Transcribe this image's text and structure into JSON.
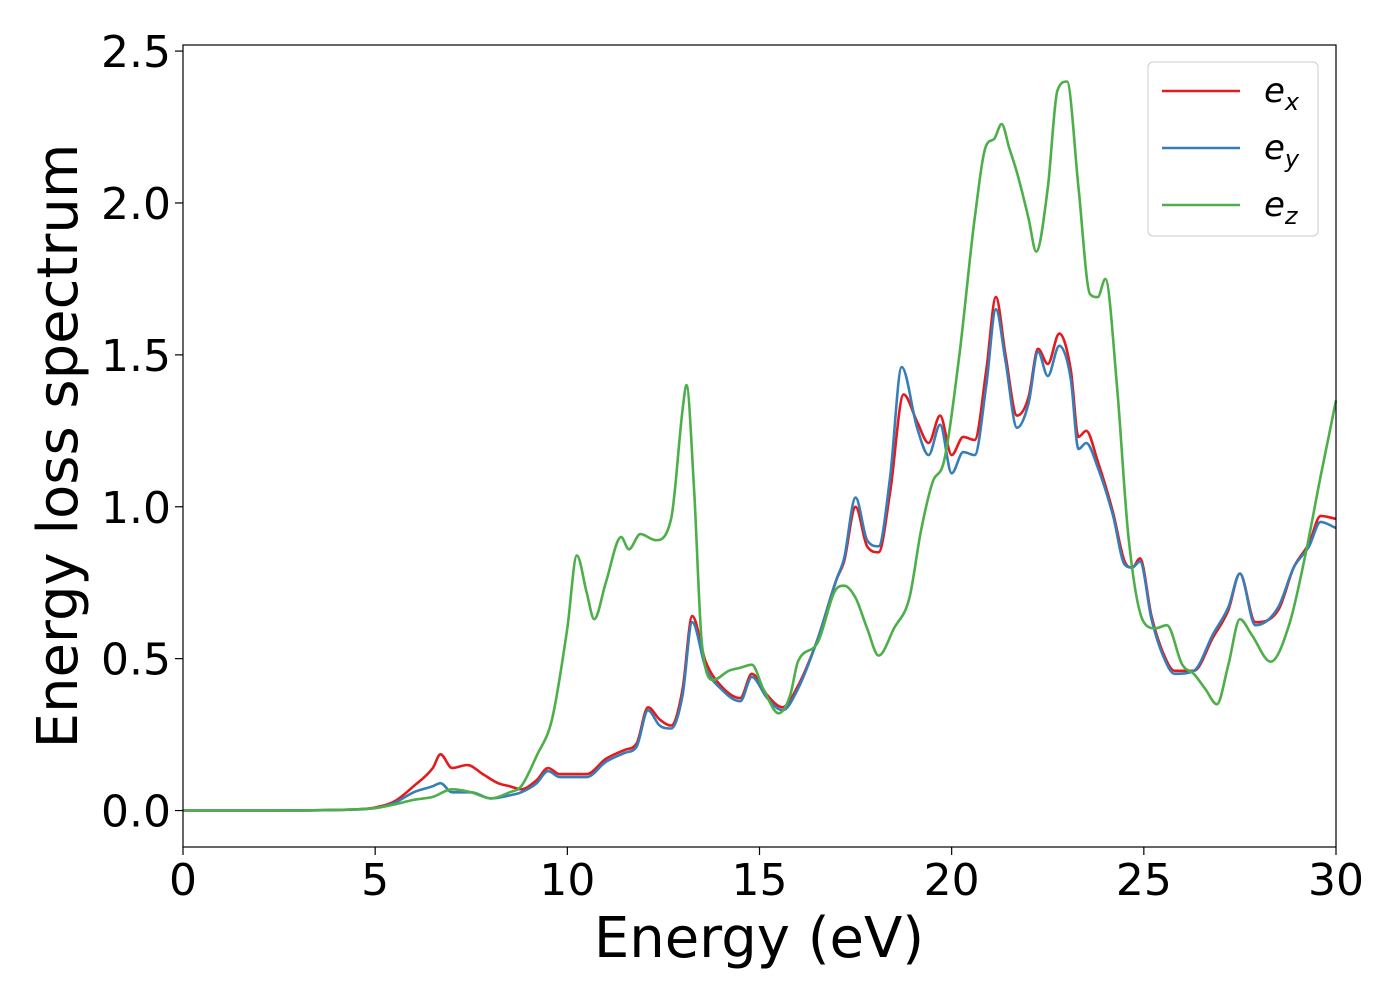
{
  "chart_data": {
    "type": "line",
    "title": "",
    "xlabel": "Energy (eV)",
    "ylabel": "Energy loss spectrum",
    "xlim": [
      0,
      30
    ],
    "ylim": [
      -0.12,
      2.52
    ],
    "xticks": [
      0,
      5,
      10,
      15,
      20,
      25,
      30
    ],
    "xtick_labels": [
      "0",
      "5",
      "10",
      "15",
      "20",
      "25",
      "30"
    ],
    "yticks": [
      0.0,
      0.5,
      1.0,
      1.5,
      2.0,
      2.5
    ],
    "ytick_labels": [
      "0.0",
      "0.5",
      "1.0",
      "1.5",
      "2.0",
      "2.5"
    ],
    "grid": false,
    "legend_position": "top-right",
    "series": [
      {
        "name": "e_x",
        "label_base": "e",
        "label_sub": "x",
        "color": "#e41a1c",
        "points": [
          [
            0,
            0
          ],
          [
            2,
            0
          ],
          [
            4,
            0.002
          ],
          [
            5,
            0.01
          ],
          [
            5.5,
            0.03
          ],
          [
            6,
            0.08
          ],
          [
            6.5,
            0.14
          ],
          [
            6.7,
            0.185
          ],
          [
            7,
            0.14
          ],
          [
            7.4,
            0.15
          ],
          [
            7.8,
            0.12
          ],
          [
            8.2,
            0.09
          ],
          [
            8.5,
            0.08
          ],
          [
            8.8,
            0.07
          ],
          [
            9.2,
            0.1
          ],
          [
            9.5,
            0.14
          ],
          [
            9.8,
            0.12
          ],
          [
            10.5,
            0.12
          ],
          [
            11,
            0.17
          ],
          [
            11.5,
            0.2
          ],
          [
            11.8,
            0.22
          ],
          [
            12.1,
            0.34
          ],
          [
            12.4,
            0.3
          ],
          [
            12.7,
            0.28
          ],
          [
            13,
            0.4
          ],
          [
            13.25,
            0.64
          ],
          [
            13.6,
            0.49
          ],
          [
            14,
            0.41
          ],
          [
            14.5,
            0.37
          ],
          [
            14.8,
            0.45
          ],
          [
            15.2,
            0.38
          ],
          [
            15.6,
            0.34
          ],
          [
            16,
            0.41
          ],
          [
            16.5,
            0.56
          ],
          [
            17,
            0.76
          ],
          [
            17.2,
            0.82
          ],
          [
            17.5,
            1.0
          ],
          [
            17.8,
            0.87
          ],
          [
            18.1,
            0.85
          ],
          [
            18.4,
            1.05
          ],
          [
            18.75,
            1.37
          ],
          [
            19.1,
            1.28
          ],
          [
            19.4,
            1.21
          ],
          [
            19.7,
            1.3
          ],
          [
            20,
            1.17
          ],
          [
            20.3,
            1.23
          ],
          [
            20.6,
            1.22
          ],
          [
            20.9,
            1.45
          ],
          [
            21.15,
            1.69
          ],
          [
            21.4,
            1.5
          ],
          [
            21.7,
            1.3
          ],
          [
            22,
            1.36
          ],
          [
            22.25,
            1.52
          ],
          [
            22.5,
            1.47
          ],
          [
            22.8,
            1.57
          ],
          [
            23.1,
            1.45
          ],
          [
            23.3,
            1.23
          ],
          [
            23.5,
            1.25
          ],
          [
            23.8,
            1.15
          ],
          [
            24.2,
            0.98
          ],
          [
            24.5,
            0.82
          ],
          [
            24.7,
            0.8
          ],
          [
            24.9,
            0.83
          ],
          [
            25.2,
            0.64
          ],
          [
            25.5,
            0.52
          ],
          [
            25.8,
            0.46
          ],
          [
            26.3,
            0.46
          ],
          [
            26.8,
            0.57
          ],
          [
            27.2,
            0.66
          ],
          [
            27.5,
            0.78
          ],
          [
            27.9,
            0.62
          ],
          [
            28.5,
            0.66
          ],
          [
            28.9,
            0.8
          ],
          [
            29.3,
            0.88
          ],
          [
            29.6,
            0.97
          ],
          [
            30,
            0.96
          ]
        ]
      },
      {
        "name": "e_y",
        "label_base": "e",
        "label_sub": "y",
        "color": "#377eb8",
        "points": [
          [
            0,
            0
          ],
          [
            2,
            0
          ],
          [
            4,
            0.002
          ],
          [
            5,
            0.008
          ],
          [
            5.5,
            0.025
          ],
          [
            6,
            0.06
          ],
          [
            6.5,
            0.08
          ],
          [
            6.7,
            0.09
          ],
          [
            7,
            0.06
          ],
          [
            7.5,
            0.06
          ],
          [
            8,
            0.04
          ],
          [
            8.5,
            0.05
          ],
          [
            8.8,
            0.06
          ],
          [
            9.2,
            0.09
          ],
          [
            9.5,
            0.13
          ],
          [
            9.8,
            0.11
          ],
          [
            10.5,
            0.11
          ],
          [
            11,
            0.16
          ],
          [
            11.5,
            0.19
          ],
          [
            11.8,
            0.21
          ],
          [
            12.1,
            0.33
          ],
          [
            12.4,
            0.28
          ],
          [
            12.7,
            0.27
          ],
          [
            13,
            0.38
          ],
          [
            13.25,
            0.62
          ],
          [
            13.6,
            0.47
          ],
          [
            14,
            0.4
          ],
          [
            14.5,
            0.36
          ],
          [
            14.8,
            0.44
          ],
          [
            15.2,
            0.37
          ],
          [
            15.6,
            0.33
          ],
          [
            16,
            0.4
          ],
          [
            16.5,
            0.56
          ],
          [
            17,
            0.76
          ],
          [
            17.2,
            0.83
          ],
          [
            17.5,
            1.03
          ],
          [
            17.8,
            0.89
          ],
          [
            18.1,
            0.87
          ],
          [
            18.4,
            1.1
          ],
          [
            18.7,
            1.46
          ],
          [
            19.1,
            1.26
          ],
          [
            19.4,
            1.17
          ],
          [
            19.7,
            1.27
          ],
          [
            20,
            1.11
          ],
          [
            20.3,
            1.18
          ],
          [
            20.6,
            1.17
          ],
          [
            20.9,
            1.4
          ],
          [
            21.15,
            1.65
          ],
          [
            21.4,
            1.48
          ],
          [
            21.7,
            1.26
          ],
          [
            22,
            1.34
          ],
          [
            22.25,
            1.51
          ],
          [
            22.5,
            1.43
          ],
          [
            22.8,
            1.53
          ],
          [
            23.1,
            1.42
          ],
          [
            23.3,
            1.19
          ],
          [
            23.5,
            1.21
          ],
          [
            23.8,
            1.13
          ],
          [
            24.2,
            0.97
          ],
          [
            24.5,
            0.81
          ],
          [
            24.7,
            0.8
          ],
          [
            24.9,
            0.82
          ],
          [
            25.2,
            0.63
          ],
          [
            25.5,
            0.51
          ],
          [
            25.8,
            0.45
          ],
          [
            26.3,
            0.46
          ],
          [
            26.8,
            0.58
          ],
          [
            27.2,
            0.67
          ],
          [
            27.5,
            0.78
          ],
          [
            27.9,
            0.61
          ],
          [
            28.5,
            0.67
          ],
          [
            28.9,
            0.8
          ],
          [
            29.3,
            0.87
          ],
          [
            29.6,
            0.95
          ],
          [
            30,
            0.93
          ]
        ]
      },
      {
        "name": "e_z",
        "label_base": "e",
        "label_sub": "z",
        "color": "#4daf4a",
        "points": [
          [
            0,
            0
          ],
          [
            2,
            0
          ],
          [
            4,
            0.002
          ],
          [
            5,
            0.008
          ],
          [
            5.5,
            0.02
          ],
          [
            6,
            0.035
          ],
          [
            6.5,
            0.045
          ],
          [
            7,
            0.07
          ],
          [
            7.5,
            0.06
          ],
          [
            8,
            0.04
          ],
          [
            8.5,
            0.06
          ],
          [
            8.8,
            0.08
          ],
          [
            9.2,
            0.18
          ],
          [
            9.6,
            0.3
          ],
          [
            10,
            0.6
          ],
          [
            10.25,
            0.84
          ],
          [
            10.5,
            0.72
          ],
          [
            10.7,
            0.63
          ],
          [
            11,
            0.75
          ],
          [
            11.4,
            0.9
          ],
          [
            11.6,
            0.86
          ],
          [
            11.9,
            0.91
          ],
          [
            12.3,
            0.89
          ],
          [
            12.7,
            0.96
          ],
          [
            13,
            1.32
          ],
          [
            13.1,
            1.4
          ],
          [
            13.3,
            1.05
          ],
          [
            13.5,
            0.55
          ],
          [
            13.8,
            0.43
          ],
          [
            14.2,
            0.46
          ],
          [
            14.5,
            0.47
          ],
          [
            14.8,
            0.48
          ],
          [
            15.1,
            0.4
          ],
          [
            15.5,
            0.32
          ],
          [
            15.8,
            0.38
          ],
          [
            16,
            0.49
          ],
          [
            16.5,
            0.55
          ],
          [
            17,
            0.73
          ],
          [
            17.2,
            0.74
          ],
          [
            17.5,
            0.7
          ],
          [
            17.8,
            0.6
          ],
          [
            18.1,
            0.51
          ],
          [
            18.5,
            0.6
          ],
          [
            18.9,
            0.7
          ],
          [
            19.2,
            0.92
          ],
          [
            19.5,
            1.08
          ],
          [
            19.8,
            1.15
          ],
          [
            20.2,
            1.5
          ],
          [
            20.6,
            1.95
          ],
          [
            20.9,
            2.19
          ],
          [
            21.1,
            2.21
          ],
          [
            21.3,
            2.26
          ],
          [
            21.5,
            2.18
          ],
          [
            21.7,
            2.1
          ],
          [
            22,
            1.95
          ],
          [
            22.2,
            1.84
          ],
          [
            22.5,
            2.05
          ],
          [
            22.75,
            2.37
          ],
          [
            23,
            2.4
          ],
          [
            23.3,
            2.05
          ],
          [
            23.6,
            1.7
          ],
          [
            23.8,
            1.69
          ],
          [
            24,
            1.75
          ],
          [
            24.3,
            1.4
          ],
          [
            24.6,
            0.9
          ],
          [
            25,
            0.62
          ],
          [
            25.3,
            0.6
          ],
          [
            25.6,
            0.61
          ],
          [
            26,
            0.48
          ],
          [
            26.3,
            0.45
          ],
          [
            26.6,
            0.4
          ],
          [
            26.9,
            0.35
          ],
          [
            27.2,
            0.48
          ],
          [
            27.5,
            0.63
          ],
          [
            27.8,
            0.58
          ],
          [
            28.3,
            0.49
          ],
          [
            28.8,
            0.62
          ],
          [
            29.2,
            0.84
          ],
          [
            29.6,
            1.1
          ],
          [
            30,
            1.35
          ]
        ]
      }
    ]
  }
}
